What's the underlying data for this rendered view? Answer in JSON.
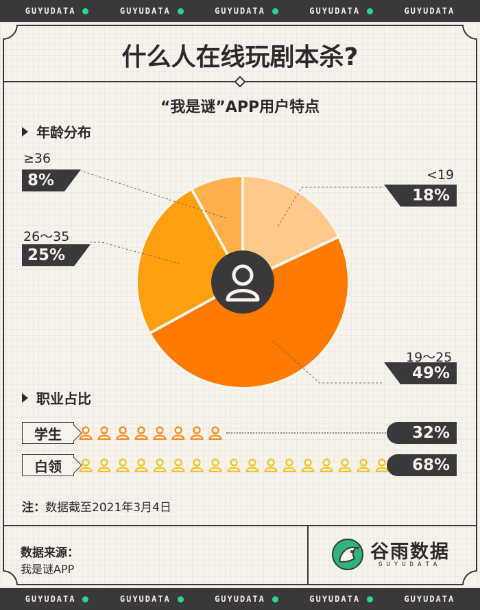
{
  "brand_ribbon": [
    "GUYUDATA",
    "GUYUDATA",
    "GUYUDATA",
    "GUYUDATA",
    "GUYUDATA"
  ],
  "title": "什么人在线玩剧本杀?",
  "subtitle": "“我是谜”APP用户特点",
  "age_section": {
    "heading": "年龄分布"
  },
  "occupation_section": {
    "heading": "职业占比"
  },
  "chart_data": [
    {
      "type": "pie",
      "title": "年龄分布",
      "slices": [
        {
          "label": "<19",
          "value": 18,
          "display": "18%",
          "color": "#ffc98a"
        },
        {
          "label": "19～25",
          "value": 49,
          "display": "49%",
          "color": "#ff7a00"
        },
        {
          "label": "26～35",
          "value": 25,
          "display": "25%",
          "color": "#ff9f10"
        },
        {
          "label": "≥36",
          "value": 8,
          "display": "8%",
          "color": "#ffb04a"
        }
      ],
      "center_icon": "user-icon"
    },
    {
      "type": "bar",
      "title": "职业占比",
      "categories": [
        "学生",
        "白领"
      ],
      "values": [
        32,
        68
      ],
      "display": [
        "32%",
        "68%"
      ],
      "icon_counts": [
        8,
        17
      ],
      "colors": [
        "#ff8a1a",
        "#f5c320"
      ]
    }
  ],
  "note": {
    "prefix": "注：",
    "text": "数据截至2021年3月4日"
  },
  "source": {
    "label": "数据来源：",
    "value": "我是谜APP"
  },
  "logo": {
    "name_cn": "谷雨数据",
    "name_en": "GUYUDATA",
    "icon": "bird-logo-icon"
  },
  "colors": {
    "dark": "#3a3838",
    "background": "#f6f3ec",
    "accent_green": "#2fd48a"
  }
}
